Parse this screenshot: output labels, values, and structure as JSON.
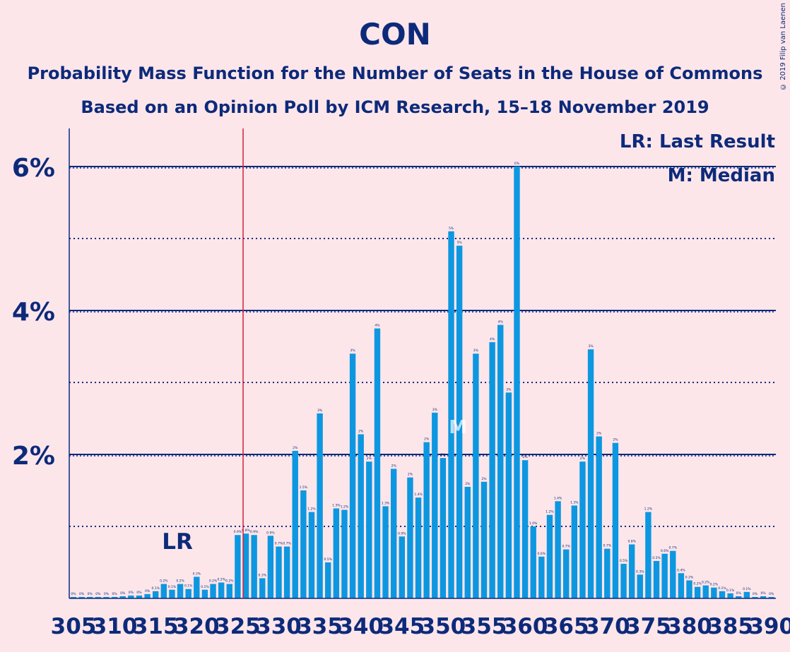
{
  "title": "CON",
  "subtitle1": "Probability Mass Function for the Number of Seats in the House of Commons",
  "subtitle2": "Based on an Opinion Poll by ICM Research, 15–18 November 2019",
  "copyright": "© 2019 Filip van Laenen",
  "legend": {
    "lr": "LR: Last Result",
    "m": "M: Median"
  },
  "colors": {
    "bar": "#0d97e0",
    "axis": "#0d2a7a",
    "last_result_line": "#d4213d",
    "background": "#fde6ea"
  },
  "chart_data": {
    "type": "bar",
    "xlim": [
      305,
      390
    ],
    "ylim": [
      0,
      6.5
    ],
    "y_unit": "%",
    "y_ticks": [
      {
        "value": 2,
        "label": "2%"
      },
      {
        "value": 4,
        "label": "4%"
      },
      {
        "value": 6,
        "label": "6%"
      }
    ],
    "y_minor_gridlines": [
      1,
      3,
      5
    ],
    "x_tick_labels": [
      "305",
      "310",
      "315",
      "320",
      "325",
      "330",
      "335",
      "340",
      "345",
      "350",
      "355",
      "360",
      "365",
      "370",
      "375",
      "380",
      "385",
      "390"
    ],
    "last_result": {
      "seat": 326,
      "label": "LR"
    },
    "median": {
      "seat": 352,
      "label": "M"
    },
    "seats": [
      305,
      306,
      307,
      308,
      309,
      310,
      311,
      312,
      313,
      314,
      315,
      316,
      317,
      318,
      319,
      320,
      321,
      322,
      323,
      324,
      325,
      326,
      327,
      328,
      329,
      330,
      331,
      332,
      333,
      334,
      335,
      336,
      337,
      338,
      339,
      340,
      341,
      342,
      343,
      344,
      345,
      346,
      347,
      348,
      349,
      350,
      351,
      352,
      353,
      354,
      355,
      356,
      357,
      358,
      359,
      360,
      361,
      362,
      363,
      364,
      365,
      366,
      367,
      368,
      369,
      370,
      371,
      372,
      373,
      374,
      375,
      376,
      377,
      378,
      379,
      380,
      381,
      382,
      383,
      384,
      385,
      386,
      387,
      388,
      389,
      390
    ],
    "values": [
      0.02,
      0.02,
      0.02,
      0.02,
      0.02,
      0.02,
      0.03,
      0.04,
      0.04,
      0.06,
      0.1,
      0.2,
      0.12,
      0.2,
      0.13,
      0.3,
      0.12,
      0.2,
      0.22,
      0.2,
      0.88,
      0.9,
      0.88,
      0.28,
      0.87,
      0.72,
      0.72,
      2.05,
      1.5,
      1.2,
      2.57,
      0.5,
      1.25,
      1.23,
      3.4,
      2.28,
      1.9,
      3.75,
      1.28,
      1.8,
      0.86,
      1.68,
      1.4,
      2.17,
      2.58,
      1.95,
      5.1,
      4.9,
      1.55,
      3.4,
      1.62,
      3.56,
      3.8,
      2.86,
      6.0,
      1.92,
      1.0,
      0.58,
      1.16,
      1.35,
      0.68,
      1.29,
      1.9,
      3.46,
      2.25,
      0.69,
      2.16,
      0.48,
      0.75,
      0.33,
      1.2,
      0.52,
      0.62,
      0.66,
      0.35,
      0.25,
      0.16,
      0.18,
      0.15,
      0.1,
      0.07,
      0.03,
      0.09,
      0.02,
      0.03,
      0.02
    ],
    "value_labels": [
      "0%",
      "0%",
      "0%",
      "0%",
      "0%",
      "0%",
      "0%",
      "0%",
      "0%",
      "0%",
      "0.1%",
      "0.2%",
      "0.1%",
      "0.2%",
      "0.1%",
      "0.3%",
      "0.1%",
      "0.2%",
      "0.2%",
      "0.2%",
      "0.9%",
      "0.9%",
      "0.9%",
      "0.3%",
      "0.9%",
      "0.7%",
      "0.7%",
      "2%",
      "1.5%",
      "1.2%",
      "3%",
      "0.5%",
      "1.3%",
      "1.2%",
      "3%",
      "2%",
      "2%",
      "4%",
      "1.3%",
      "2%",
      "0.9%",
      "2%",
      "1.4%",
      "2%",
      "3%",
      "2%",
      "5%",
      "5%",
      "2%",
      "3%",
      "2%",
      "4%",
      "4%",
      "3%",
      "6%",
      "2%",
      "1.0%",
      "0.6%",
      "1.2%",
      "1.4%",
      "0.7%",
      "1.3%",
      "2%",
      "3%",
      "2%",
      "0.7%",
      "2%",
      "0.5%",
      "0.8%",
      "0.3%",
      "1.2%",
      "0.5%",
      "0.6%",
      "0.7%",
      "0.4%",
      "0.2%",
      "0.2%",
      "0.2%",
      "0.2%",
      "0.1%",
      "0.1%",
      "0%",
      "0.1%",
      "0%",
      "0%",
      "0%"
    ]
  }
}
